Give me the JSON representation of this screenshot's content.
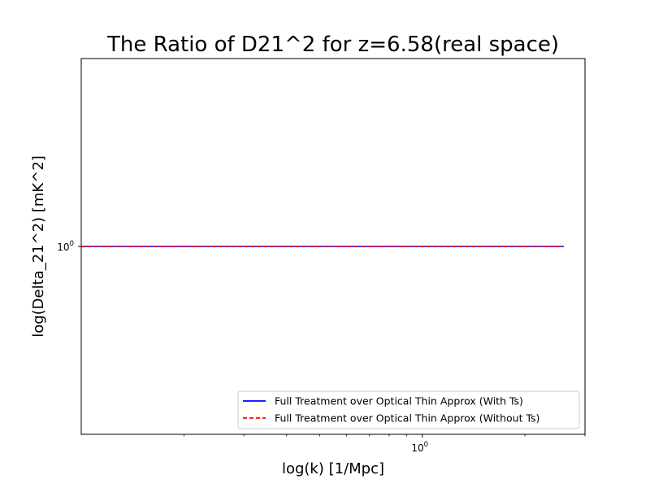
{
  "chart_data": {
    "type": "line",
    "title": "The Ratio of D21^2 for z=6.58(real space)",
    "xlabel": "log(k) [1/Mpc]",
    "ylabel": "log(Delta_21^2) [mK^2]",
    "xscale": "log",
    "yscale": "log",
    "xlim": [
      0.1,
      3.0
    ],
    "ylim": [
      0.1,
      10.0
    ],
    "x_major_ticks": [
      {
        "value": 1,
        "base": "10",
        "exp": "0"
      }
    ],
    "y_major_ticks": [
      {
        "value": 1,
        "base": "10",
        "exp": "0"
      }
    ],
    "x_minor_ticks": [
      0.2,
      0.3,
      0.4,
      0.5,
      0.6,
      0.7,
      0.8,
      0.9,
      2,
      3
    ],
    "grid": false,
    "legend_position": "lower-right",
    "series": [
      {
        "name": "Full Treatment over Optical Thin Approx (With Ts)",
        "color": "#0000ff",
        "linestyle": "solid",
        "x": [
          0.1,
          0.2,
          0.5,
          1.0,
          2.0,
          2.6
        ],
        "y": [
          1.0,
          1.0,
          1.0,
          1.0,
          1.0,
          1.0
        ]
      },
      {
        "name": "Full Treatment over Optical Thin Approx (Without Ts)",
        "color": "#ff0000",
        "linestyle": "dashed",
        "x": [
          0.1,
          0.2,
          0.5,
          1.0,
          2.0,
          2.6
        ],
        "y": [
          1.0,
          1.0,
          1.0,
          1.0,
          1.0,
          1.0
        ]
      }
    ]
  }
}
